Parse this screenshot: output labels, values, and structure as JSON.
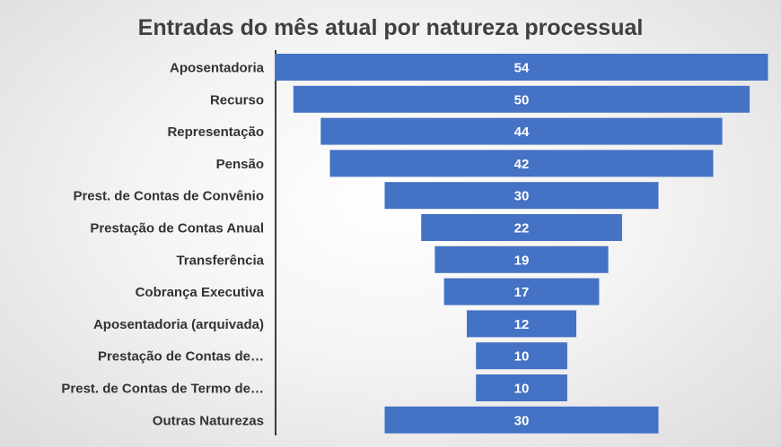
{
  "chart_data": {
    "type": "bar",
    "subtype": "funnel",
    "orientation": "horizontal",
    "title": "Entradas do mês atual por natureza processual",
    "categories": [
      "Aposentadoria",
      "Recurso",
      "Representação",
      "Pensão",
      "Prest. de Contas de Convênio",
      "Prestação de Contas Anual",
      "Transferência",
      "Cobrança Executiva",
      "Aposentadoria (arquivada)",
      "Prestação de Contas de…",
      "Prest. de Contas de Termo de…",
      "Outras Naturezas"
    ],
    "values": [
      54,
      50,
      44,
      42,
      30,
      22,
      19,
      17,
      12,
      10,
      10,
      30
    ],
    "bar_color": "#4472C4",
    "label_color": "#FFFFFF",
    "grid": false,
    "legend": "none"
  }
}
